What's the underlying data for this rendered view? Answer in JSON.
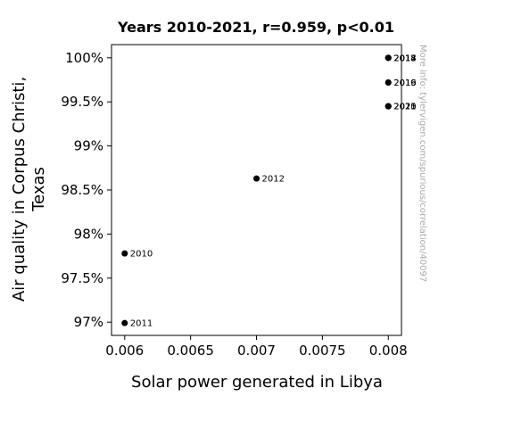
{
  "chart_data": {
    "type": "scatter",
    "title": "Years 2010-2021, r=0.959, p<0.01",
    "xlabel": "Solar power generated in Libya",
    "ylabel_lines": [
      "Air quality in Corpus Christi,",
      "Texas"
    ],
    "xlim": [
      0.0059,
      0.0081
    ],
    "ylim": [
      96.85,
      100.15
    ],
    "x_ticks": [
      {
        "value": 0.006,
        "label": "0.006"
      },
      {
        "value": 0.0065,
        "label": "0.0065"
      },
      {
        "value": 0.007,
        "label": "0.007"
      },
      {
        "value": 0.0075,
        "label": "0.0075"
      },
      {
        "value": 0.008,
        "label": "0.008"
      }
    ],
    "y_ticks": [
      {
        "value": 97,
        "label": "97%"
      },
      {
        "value": 97.5,
        "label": "97.5%"
      },
      {
        "value": 98,
        "label": "98%"
      },
      {
        "value": 98.5,
        "label": "98.5%"
      },
      {
        "value": 99,
        "label": "99%"
      },
      {
        "value": 99.5,
        "label": "99.5%"
      },
      {
        "value": 100,
        "label": "100%"
      }
    ],
    "points": [
      {
        "label": "2010",
        "x": 0.006,
        "y": 97.78
      },
      {
        "label": "2011",
        "x": 0.006,
        "y": 96.99
      },
      {
        "label": "2012",
        "x": 0.007,
        "y": 98.63
      },
      {
        "label": "2013",
        "x": 0.008,
        "y": 100.0
      },
      {
        "label": "2014",
        "x": 0.008,
        "y": 100.0
      },
      {
        "label": "2015",
        "x": 0.008,
        "y": 99.45
      },
      {
        "label": "2016",
        "x": 0.008,
        "y": 99.72
      },
      {
        "label": "2017",
        "x": 0.008,
        "y": 100.0
      },
      {
        "label": "2018",
        "x": 0.008,
        "y": 100.0
      },
      {
        "label": "2019",
        "x": 0.008,
        "y": 99.72
      },
      {
        "label": "2020",
        "x": 0.008,
        "y": 99.45
      },
      {
        "label": "2021",
        "x": 0.008,
        "y": 99.45
      }
    ],
    "point_color": "#000000",
    "grid": false,
    "watermark": "More info: tylervigen.com/spurious/correlation/40097"
  }
}
